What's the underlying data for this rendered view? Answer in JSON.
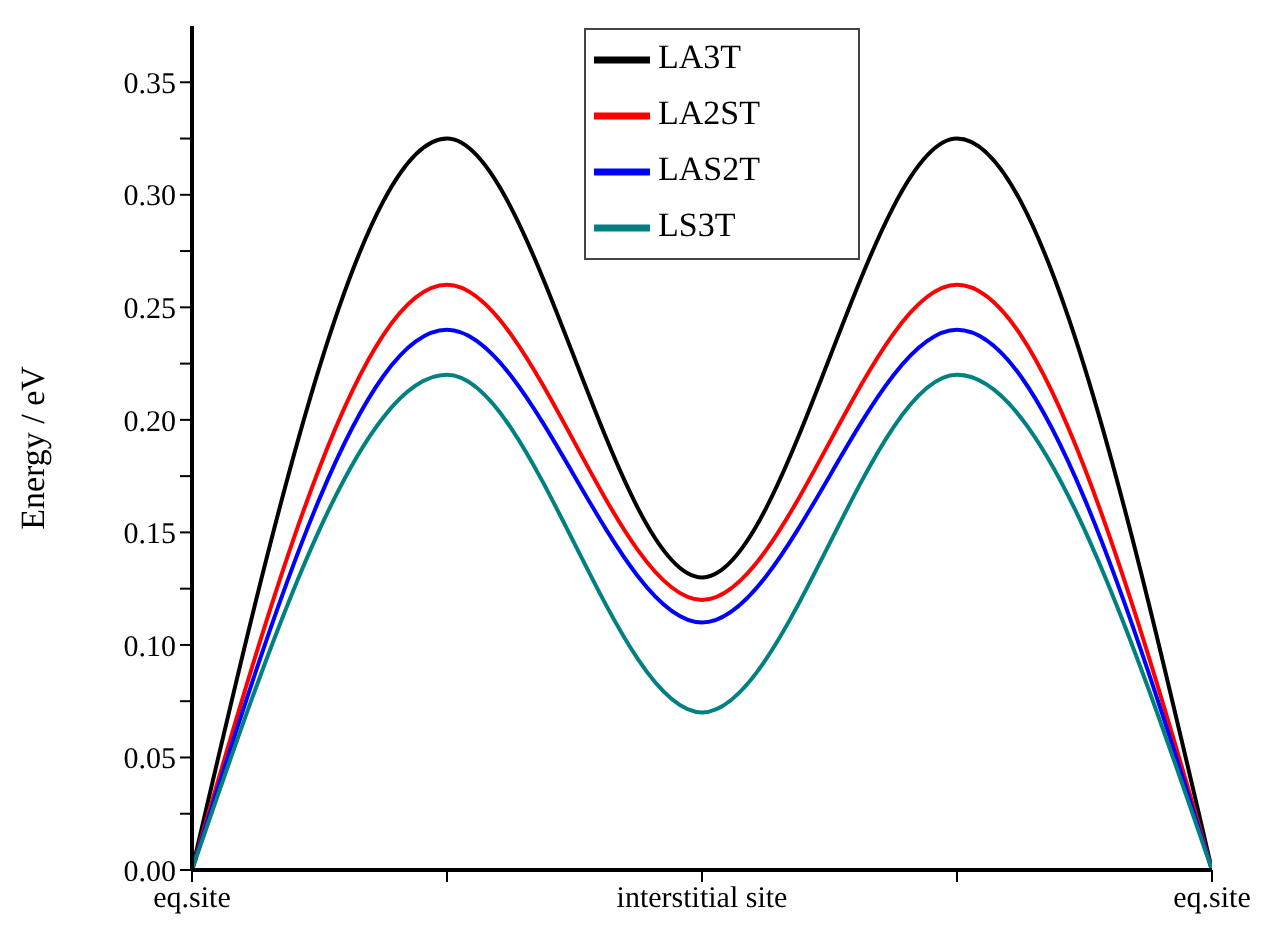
{
  "chart_data": {
    "type": "line",
    "ylabel": "Energy / eV",
    "categories": [
      "eq.site",
      null,
      "interstitial site",
      null,
      "eq.site"
    ],
    "ylim": [
      0,
      0.375
    ],
    "yticks": [
      {
        "value": 0,
        "label": "0.00"
      },
      {
        "value": 0.025,
        "label": null
      },
      {
        "value": 0.05,
        "label": "0.05"
      },
      {
        "value": 0.075,
        "label": null
      },
      {
        "value": 0.1,
        "label": "0.10"
      },
      {
        "value": 0.125,
        "label": null
      },
      {
        "value": 0.15,
        "label": "0.15"
      },
      {
        "value": 0.175,
        "label": null
      },
      {
        "value": 0.2,
        "label": "0.20"
      },
      {
        "value": 0.225,
        "label": null
      },
      {
        "value": 0.25,
        "label": "0.25"
      },
      {
        "value": 0.275,
        "label": null
      },
      {
        "value": 0.3,
        "label": "0.30"
      },
      {
        "value": 0.325,
        "label": null
      },
      {
        "value": 0.35,
        "label": "0.35"
      }
    ],
    "series": [
      {
        "name": "LA3T",
        "color": "#000000",
        "values": [
          0,
          0.325,
          0.13,
          0.325,
          0
        ],
        "errors": [
          0,
          0,
          0,
          0,
          0
        ]
      },
      {
        "name": "LA2ST",
        "color": "#ff0000",
        "values": [
          0,
          0.26,
          0.12,
          0.26,
          0
        ],
        "errors": [
          0,
          0,
          0,
          0,
          0
        ]
      },
      {
        "name": "LAS2T",
        "color": "#0000ff",
        "values": [
          0,
          0.24,
          0.11,
          0.24,
          0
        ],
        "errors": [
          0,
          0,
          0,
          0,
          0
        ]
      },
      {
        "name": "LS3T",
        "color": "#008080",
        "values": [
          0,
          0.22,
          0.07,
          0.22,
          0
        ],
        "errors": [
          0,
          0,
          0,
          0,
          0
        ]
      }
    ],
    "legend": "top",
    "grid": false,
    "line_style": "solid",
    "marker": "none"
  }
}
